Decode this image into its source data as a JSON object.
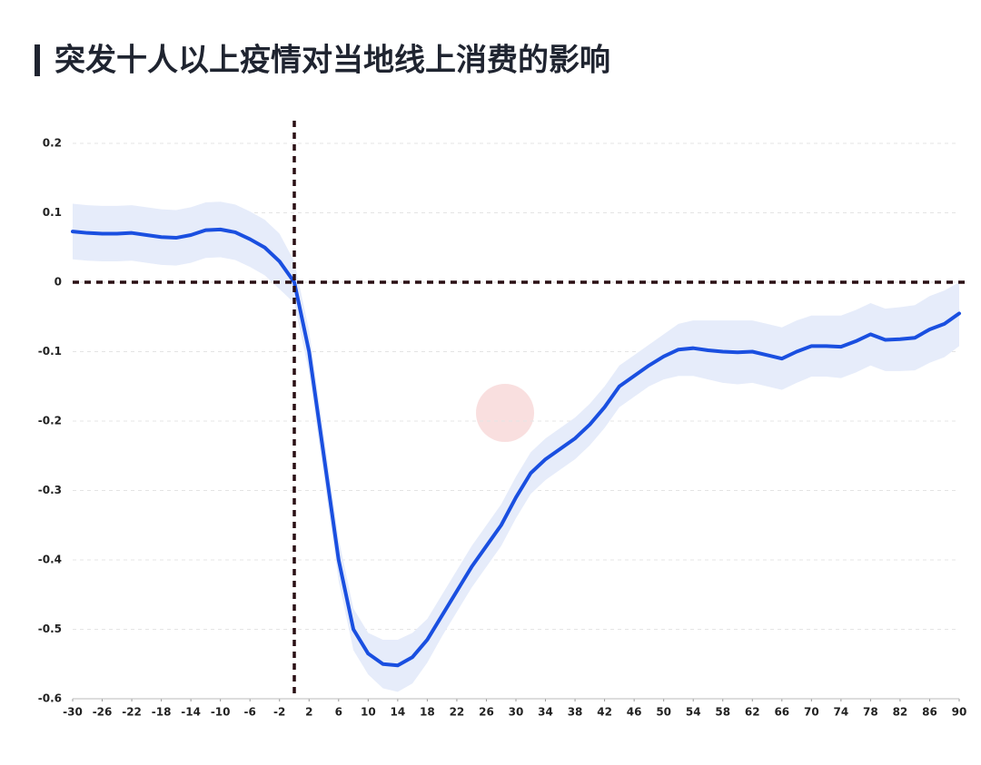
{
  "chart_data": {
    "type": "line",
    "title": "突发十人以上疫情对当地线上消费的影响",
    "x": [
      -30,
      -28,
      -26,
      -24,
      -22,
      -20,
      -18,
      -16,
      -14,
      -12,
      -10,
      -8,
      -6,
      -4,
      -2,
      0,
      2,
      4,
      6,
      8,
      10,
      12,
      14,
      16,
      18,
      20,
      22,
      24,
      26,
      28,
      30,
      32,
      34,
      36,
      38,
      40,
      42,
      44,
      46,
      48,
      50,
      52,
      54,
      56,
      58,
      60,
      62,
      64,
      66,
      68,
      70,
      72,
      74,
      76,
      78,
      80,
      82,
      84,
      86,
      88,
      90
    ],
    "series": [
      {
        "color": "#1a4fe0",
        "band_color": "#e6ecfa",
        "values": [
          0.073,
          0.071,
          0.07,
          0.07,
          0.071,
          0.068,
          0.065,
          0.064,
          0.068,
          0.075,
          0.076,
          0.072,
          0.062,
          0.05,
          0.03,
          0.0,
          -0.1,
          -0.25,
          -0.4,
          -0.5,
          -0.535,
          -0.55,
          -0.552,
          -0.54,
          -0.515,
          -0.48,
          -0.445,
          -0.41,
          -0.38,
          -0.35,
          -0.31,
          -0.275,
          -0.255,
          -0.24,
          -0.225,
          -0.205,
          -0.18,
          -0.15,
          -0.135,
          -0.12,
          -0.107,
          -0.097,
          -0.095,
          -0.098,
          -0.1,
          -0.101,
          -0.1,
          -0.105,
          -0.11,
          -0.1,
          -0.092,
          -0.092,
          -0.093,
          -0.085,
          -0.075,
          -0.083,
          -0.082,
          -0.08,
          -0.068,
          -0.06,
          -0.045
        ],
        "upper": [
          0.113,
          0.111,
          0.11,
          0.11,
          0.111,
          0.108,
          0.105,
          0.104,
          0.108,
          0.115,
          0.116,
          0.112,
          0.102,
          0.09,
          0.07,
          0.03,
          -0.07,
          -0.22,
          -0.37,
          -0.47,
          -0.505,
          -0.515,
          -0.515,
          -0.505,
          -0.485,
          -0.45,
          -0.415,
          -0.38,
          -0.35,
          -0.32,
          -0.28,
          -0.245,
          -0.225,
          -0.21,
          -0.195,
          -0.175,
          -0.15,
          -0.12,
          -0.105,
          -0.09,
          -0.075,
          -0.06,
          -0.055,
          -0.055,
          -0.055,
          -0.055,
          -0.055,
          -0.06,
          -0.065,
          -0.055,
          -0.048,
          -0.048,
          -0.048,
          -0.04,
          -0.03,
          -0.038,
          -0.036,
          -0.033,
          -0.02,
          -0.012,
          0.0
        ],
        "lower": [
          0.033,
          0.031,
          0.03,
          0.03,
          0.031,
          0.028,
          0.025,
          0.024,
          0.028,
          0.035,
          0.036,
          0.032,
          0.022,
          0.01,
          -0.01,
          -0.03,
          -0.13,
          -0.28,
          -0.43,
          -0.53,
          -0.565,
          -0.585,
          -0.59,
          -0.578,
          -0.548,
          -0.51,
          -0.475,
          -0.44,
          -0.41,
          -0.38,
          -0.34,
          -0.305,
          -0.285,
          -0.27,
          -0.255,
          -0.235,
          -0.21,
          -0.18,
          -0.165,
          -0.15,
          -0.14,
          -0.135,
          -0.135,
          -0.14,
          -0.145,
          -0.147,
          -0.145,
          -0.15,
          -0.155,
          -0.145,
          -0.136,
          -0.136,
          -0.138,
          -0.13,
          -0.12,
          -0.128,
          -0.128,
          -0.127,
          -0.116,
          -0.108,
          -0.092
        ]
      }
    ],
    "xlim": [
      -30,
      90
    ],
    "xticks": [
      -30,
      -26,
      -22,
      -18,
      -14,
      -10,
      -6,
      -2,
      2,
      6,
      10,
      14,
      18,
      22,
      26,
      30,
      34,
      38,
      42,
      46,
      50,
      54,
      58,
      62,
      66,
      70,
      74,
      78,
      82,
      86,
      90
    ],
    "ylim": [
      -0.6,
      0.2
    ],
    "yticks": [
      -0.6,
      -0.5,
      -0.4,
      -0.3,
      -0.2,
      -0.1,
      0,
      0.1,
      0.2
    ],
    "grid": true,
    "vline": 0,
    "hline": 0,
    "reference_color": "#2a0f14"
  }
}
